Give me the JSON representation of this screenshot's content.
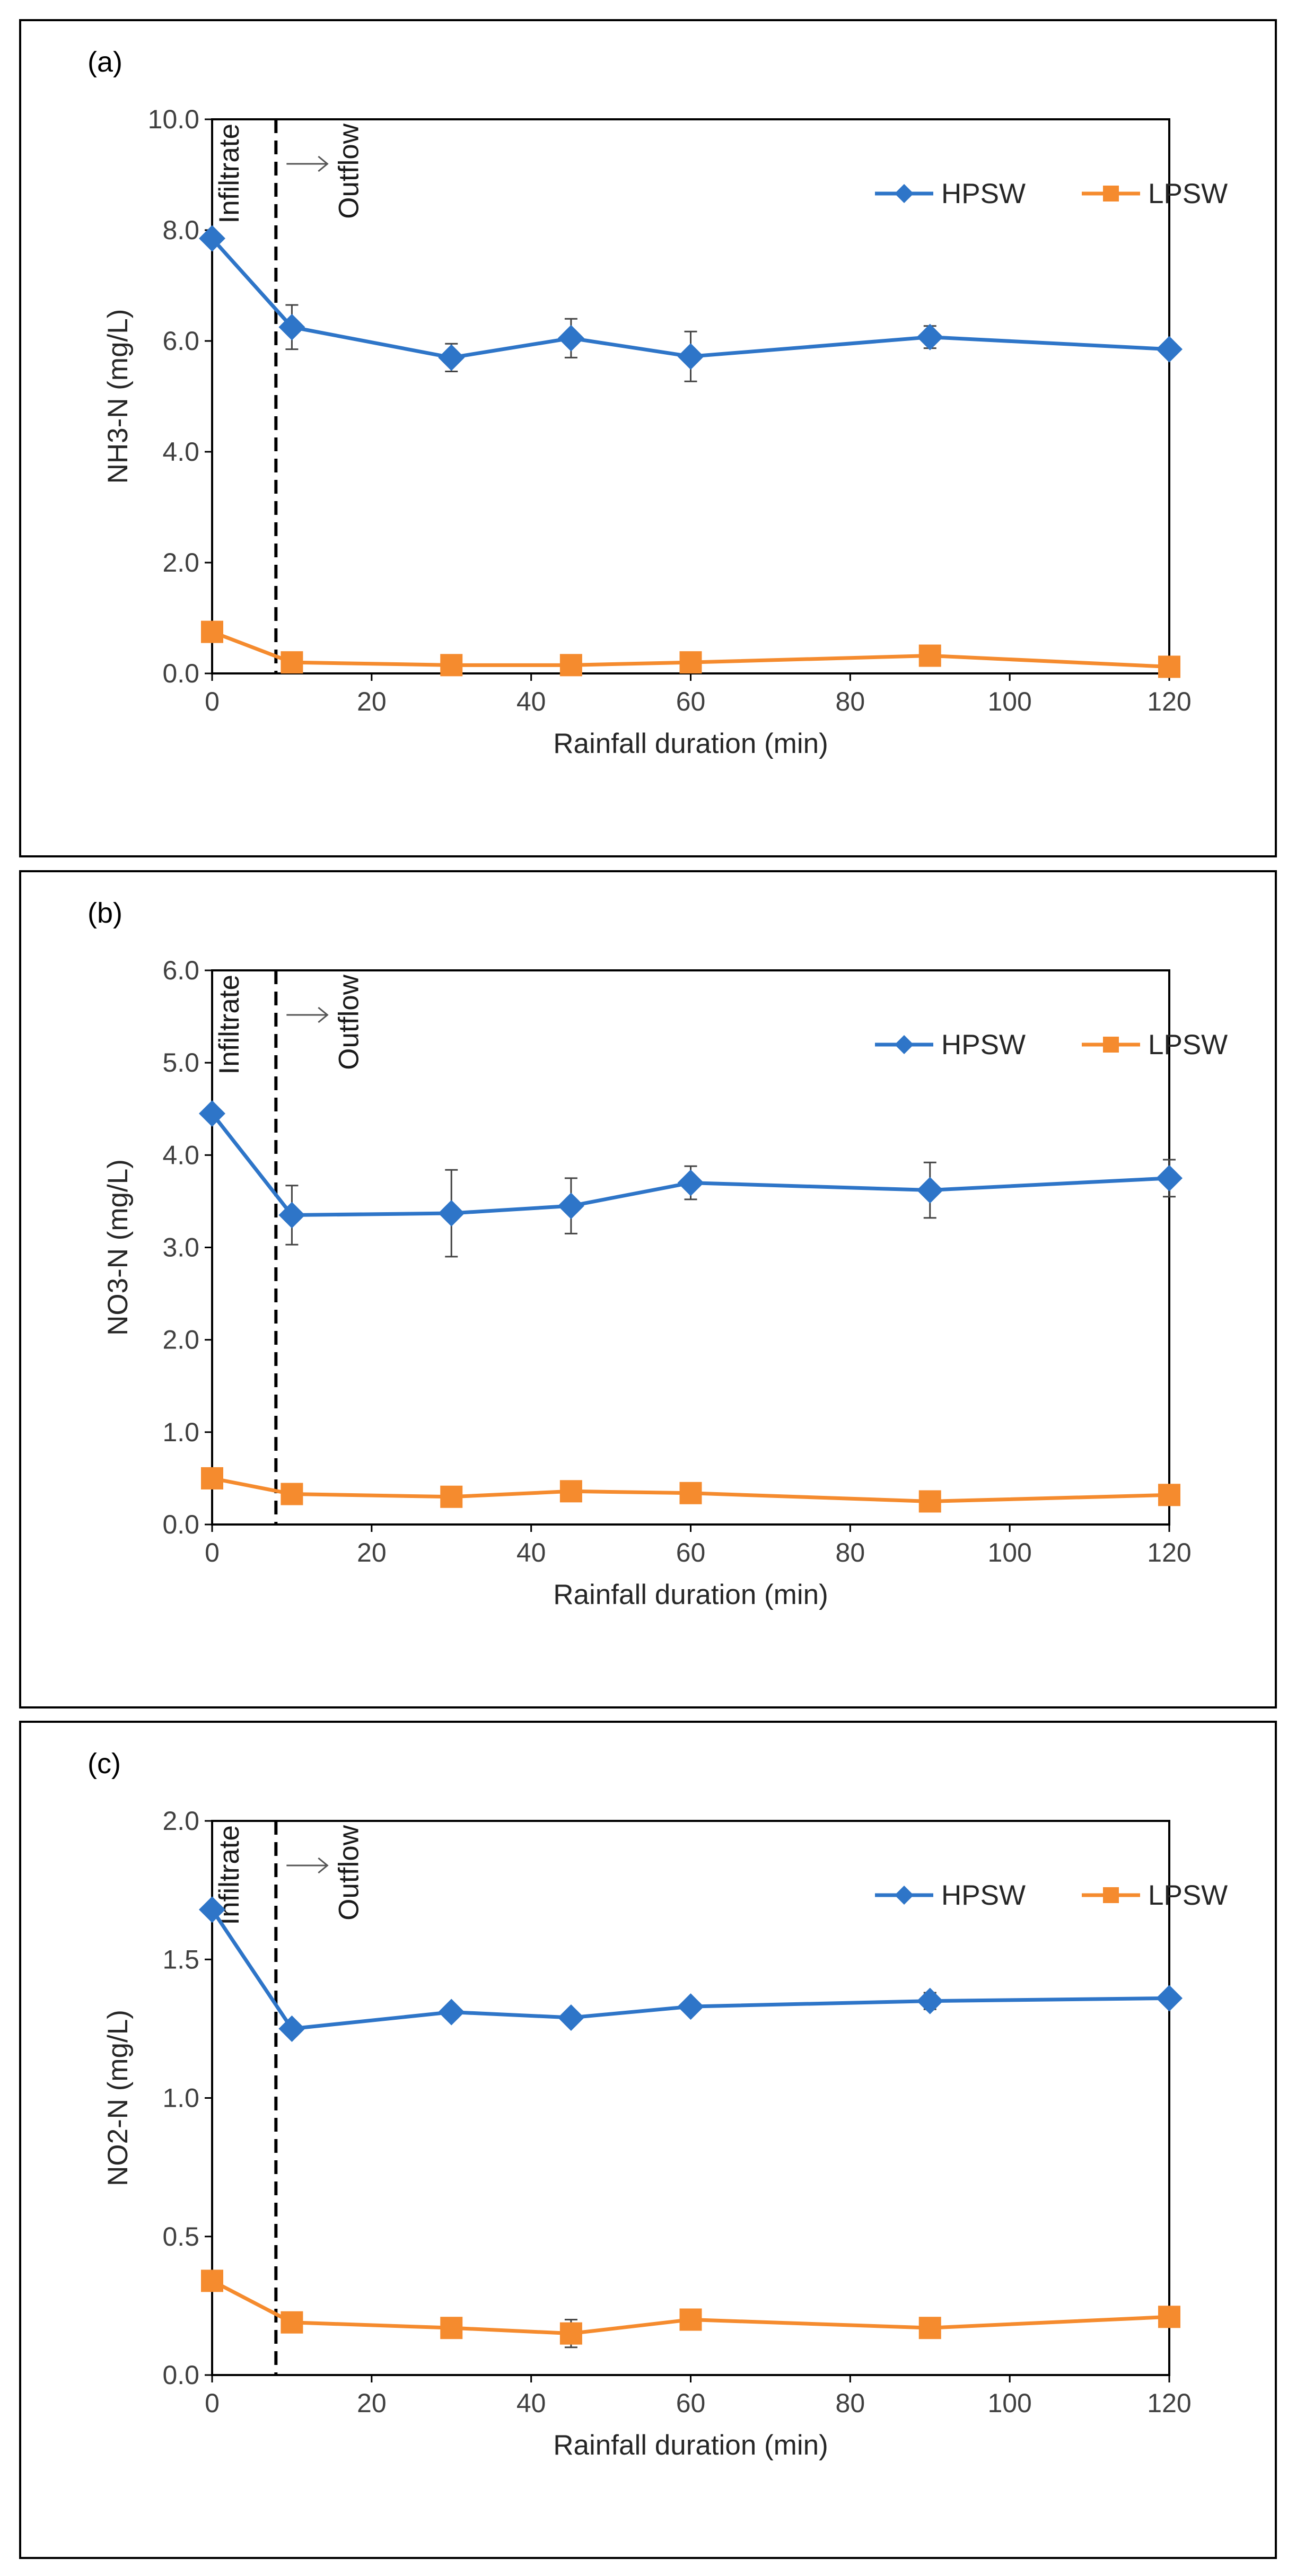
{
  "chart_data": [
    {
      "type": "line",
      "panel_label": "(a)",
      "xlabel": "Rainfall duration (min)",
      "ylabel": "NH3-N  (mg/L)",
      "xlim": [
        0,
        120
      ],
      "ylim": [
        0,
        10
      ],
      "xticks": [
        0,
        20,
        40,
        60,
        80,
        100,
        120
      ],
      "yticks": [
        "0.0",
        "2.0",
        "4.0",
        "6.0",
        "8.0",
        "10.0"
      ],
      "x": [
        0,
        10,
        30,
        45,
        60,
        90,
        120
      ],
      "series": [
        {
          "name": "HPSW",
          "color": "#2e75c8",
          "marker": "diamond",
          "values": [
            7.85,
            6.25,
            5.7,
            6.05,
            5.72,
            6.07,
            5.85
          ],
          "errors": [
            0.0,
            0.4,
            0.25,
            0.35,
            0.45,
            0.2,
            0.0
          ]
        },
        {
          "name": "LPSW",
          "color": "#f58b2e",
          "marker": "square",
          "values": [
            0.75,
            0.2,
            0.15,
            0.15,
            0.2,
            0.32,
            0.12
          ],
          "errors": [
            0,
            0,
            0,
            0,
            0,
            0,
            0
          ]
        }
      ],
      "divider_x": 8,
      "annotations": {
        "left": "Infiltrate",
        "right": "Outflow"
      },
      "legend": "top-right"
    },
    {
      "type": "line",
      "panel_label": "(b)",
      "xlabel": "Rainfall duration (min)",
      "ylabel": "NO3-N  (mg/L)",
      "xlim": [
        0,
        120
      ],
      "ylim": [
        0,
        6
      ],
      "xticks": [
        0,
        20,
        40,
        60,
        80,
        100,
        120
      ],
      "yticks": [
        "0.0",
        "1.0",
        "2.0",
        "3.0",
        "4.0",
        "5.0",
        "6.0"
      ],
      "x": [
        0,
        10,
        30,
        45,
        60,
        90,
        120
      ],
      "series": [
        {
          "name": "HPSW",
          "color": "#2e75c8",
          "marker": "diamond",
          "values": [
            4.45,
            3.35,
            3.37,
            3.45,
            3.7,
            3.62,
            3.75
          ],
          "errors": [
            0.0,
            0.32,
            0.47,
            0.3,
            0.18,
            0.3,
            0.2
          ]
        },
        {
          "name": "LPSW",
          "color": "#f58b2e",
          "marker": "square",
          "values": [
            0.5,
            0.33,
            0.3,
            0.36,
            0.34,
            0.25,
            0.32
          ],
          "errors": [
            0,
            0,
            0,
            0,
            0,
            0,
            0
          ]
        }
      ],
      "divider_x": 8,
      "annotations": {
        "left": "Infiltrate",
        "right": "Outflow"
      },
      "legend": "top-right"
    },
    {
      "type": "line",
      "panel_label": "(c)",
      "xlabel": "Rainfall duration (min)",
      "ylabel": "NO2-N  (mg/L)",
      "xlim": [
        0,
        120
      ],
      "ylim": [
        0,
        2
      ],
      "xticks": [
        0,
        20,
        40,
        60,
        80,
        100,
        120
      ],
      "yticks": [
        "0.0",
        "0.5",
        "1.0",
        "1.5",
        "2.0"
      ],
      "x": [
        0,
        10,
        30,
        45,
        60,
        90,
        120
      ],
      "series": [
        {
          "name": "HPSW",
          "color": "#2e75c8",
          "marker": "diamond",
          "values": [
            1.68,
            1.25,
            1.31,
            1.29,
            1.33,
            1.35,
            1.36
          ],
          "errors": [
            0.0,
            0.01,
            0.02,
            0.02,
            0.02,
            0.03,
            0.0
          ]
        },
        {
          "name": "LPSW",
          "color": "#f58b2e",
          "marker": "square",
          "values": [
            0.34,
            0.19,
            0.17,
            0.15,
            0.2,
            0.17,
            0.21
          ],
          "errors": [
            0.0,
            0.0,
            0.0,
            0.05,
            0.0,
            0.0,
            0.0
          ]
        }
      ],
      "divider_x": 8,
      "annotations": {
        "left": "Infiltrate",
        "right": "Outflow"
      },
      "legend": "top-right"
    }
  ]
}
